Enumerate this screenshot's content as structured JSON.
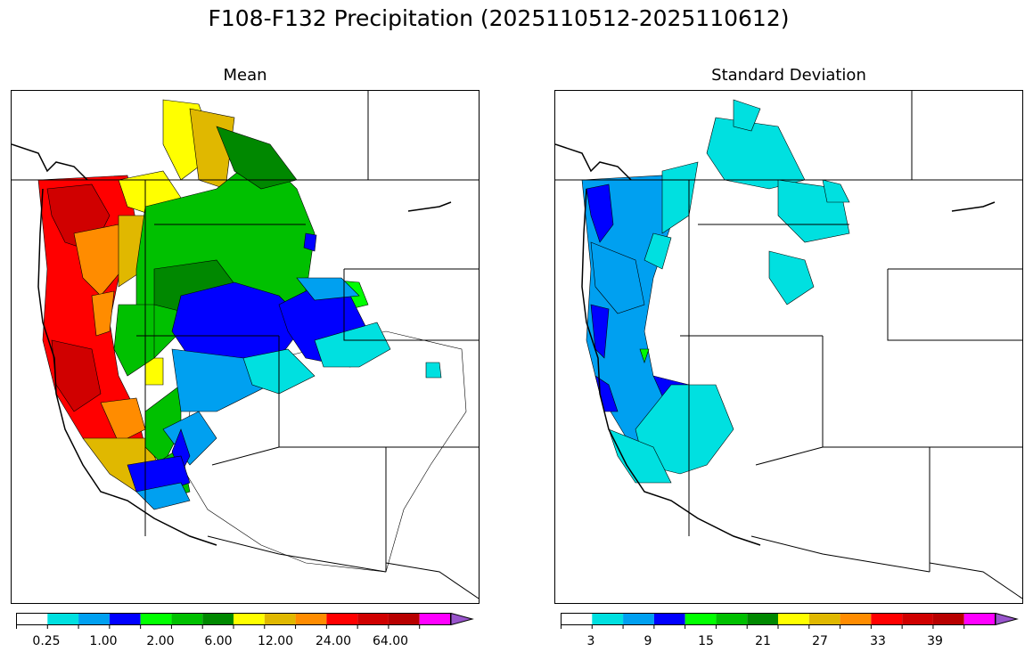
{
  "title": "F108-F132 Precipitation (2025110512-2025110612)",
  "panels": [
    {
      "title": "Mean",
      "colorbar": {
        "colors": [
          "#ffffff",
          "#00e0e0",
          "#00a0f0",
          "#0000ff",
          "#00ff00",
          "#00c000",
          "#008800",
          "#ffff00",
          "#e0b800",
          "#ff8c00",
          "#ff0000",
          "#d00000",
          "#b80000",
          "#ff00ff",
          "#9955cc"
        ],
        "tick_labels": [
          "0.25",
          "1.00",
          "2.00",
          "6.00",
          "12.00",
          "24.00",
          "64.00"
        ]
      }
    },
    {
      "title": "Standard Deviation",
      "colorbar": {
        "colors": [
          "#ffffff",
          "#00e0e0",
          "#00a0f0",
          "#0000ff",
          "#00ff00",
          "#00c000",
          "#008800",
          "#ffff00",
          "#e0b800",
          "#ff8c00",
          "#ff0000",
          "#d00000",
          "#b80000",
          "#ff00ff",
          "#9955cc"
        ],
        "tick_labels": [
          "3",
          "9",
          "15",
          "21",
          "27",
          "33",
          "39"
        ]
      }
    }
  ],
  "chart_data": [
    {
      "type": "heatmap",
      "title": "Mean",
      "variable": "F108-F132 Precipitation (2025110512-2025110612)",
      "levels": [
        "0.25",
        "1.00",
        "2.00",
        "6.00",
        "12.00",
        "24.00",
        "64.00"
      ],
      "pattern": "highest values (24-64) along Pacific coast of WA/OR/N. CA; green (2-6) over interior Northwest; blue (1-2) over central NV/ID; white (<0.25) over the Southwest"
    },
    {
      "type": "heatmap",
      "title": "Standard Deviation",
      "levels": [
        "3",
        "9",
        "15",
        "21",
        "27",
        "33",
        "39"
      ],
      "pattern": "blue (9-15) along Pacific coast; cyan (3-9) over interior Northwest; white over the Southwest"
    }
  ]
}
